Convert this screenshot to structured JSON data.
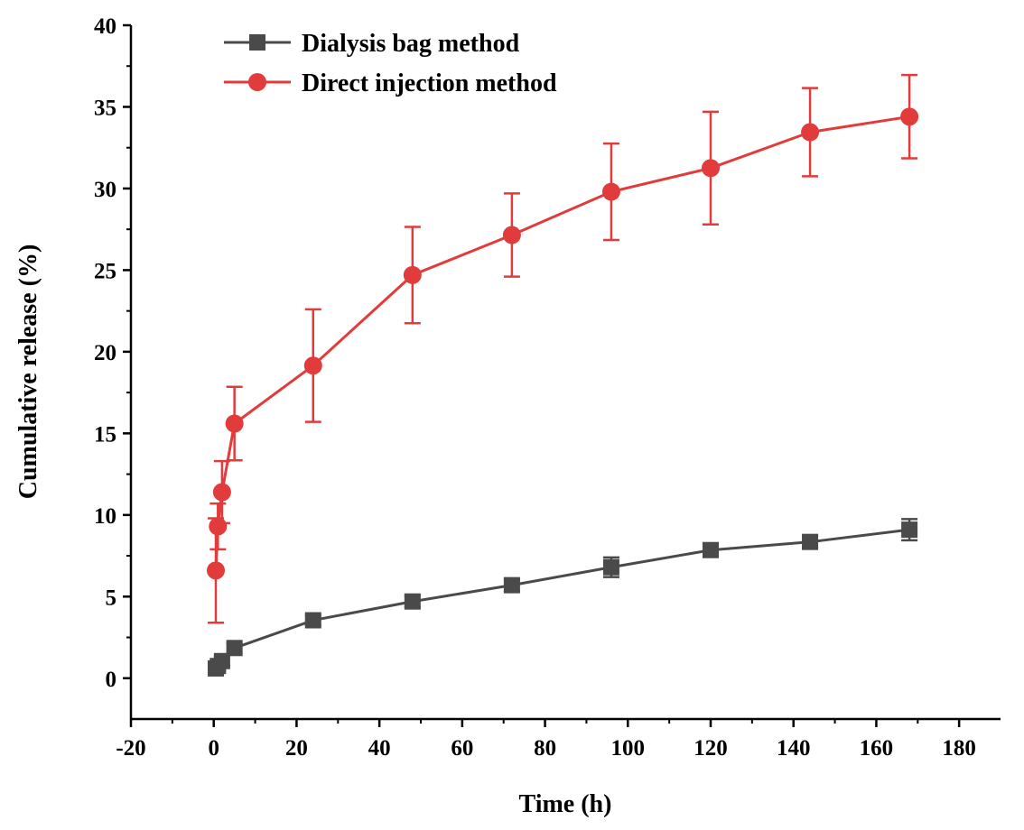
{
  "chart_data": {
    "type": "line",
    "title": "",
    "xlabel": "Time (h)",
    "ylabel": "Cumulative release (%)",
    "xlim": [
      -20,
      190
    ],
    "ylim": [
      -2.5,
      40
    ],
    "xticks": [
      -20,
      0,
      20,
      40,
      60,
      80,
      100,
      120,
      140,
      160,
      180
    ],
    "yticks": [
      0,
      5,
      10,
      15,
      20,
      25,
      30,
      35,
      40
    ],
    "xtick_labels": [
      "-20",
      "0",
      "20",
      "40",
      "60",
      "80",
      "100",
      "120",
      "140",
      "160",
      "180"
    ],
    "ytick_labels": [
      "0",
      "5",
      "10",
      "15",
      "20",
      "25",
      "30",
      "35",
      "40"
    ],
    "legend_position": "top-left",
    "series": [
      {
        "name": "Dialysis bag method",
        "color": "#4a4a4a",
        "marker": "square",
        "x": [
          0.5,
          1,
          2,
          5,
          24,
          48,
          72,
          96,
          120,
          144,
          168
        ],
        "y": [
          0.6,
          0.75,
          1.05,
          1.85,
          3.55,
          4.7,
          5.7,
          6.8,
          7.85,
          8.35,
          9.1
        ],
        "err": [
          0.3,
          0.3,
          0.3,
          0.3,
          0.3,
          0.35,
          0.35,
          0.6,
          0.35,
          0.35,
          0.65
        ]
      },
      {
        "name": "Direct injection method",
        "color": "#e23b3b",
        "marker": "circle",
        "x": [
          0.5,
          1,
          2,
          5,
          24,
          48,
          72,
          96,
          120,
          144,
          168
        ],
        "y": [
          6.6,
          9.3,
          11.4,
          15.6,
          19.15,
          24.7,
          27.15,
          29.8,
          31.25,
          33.45,
          34.4
        ],
        "err": [
          3.2,
          1.4,
          1.9,
          2.25,
          3.45,
          2.95,
          2.55,
          2.95,
          3.45,
          2.7,
          2.55
        ]
      }
    ]
  }
}
